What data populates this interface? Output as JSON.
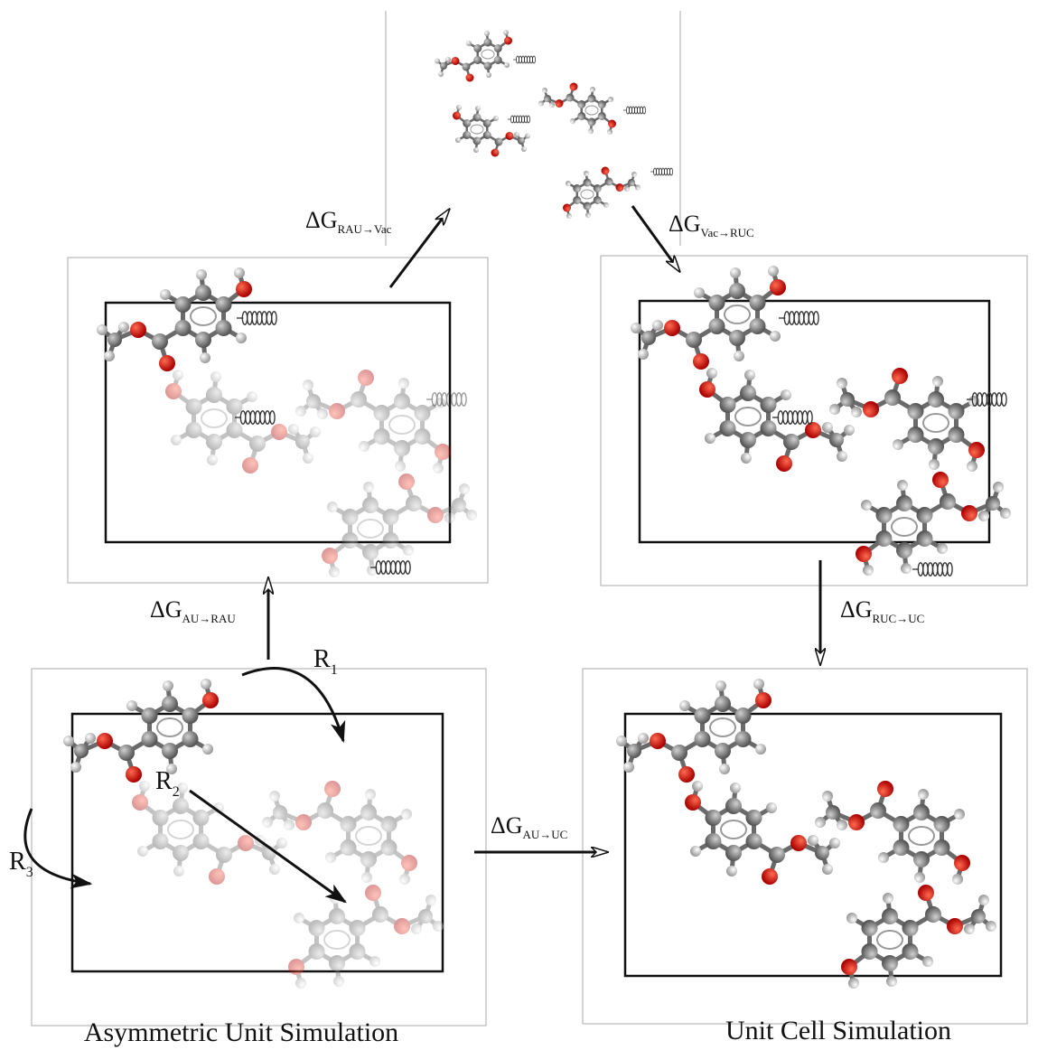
{
  "transitions": [
    {
      "symbol": "ΔG",
      "subscript": "RAU→Vac"
    },
    {
      "symbol": "ΔG",
      "subscript": "Vac→RUC"
    },
    {
      "symbol": "ΔG",
      "subscript": "AU→RAU"
    },
    {
      "symbol": "ΔG",
      "subscript": "RUC→UC"
    },
    {
      "symbol": "ΔG",
      "subscript": "AU→UC"
    }
  ],
  "operations": [
    {
      "symbol": "R",
      "subscript": "1"
    },
    {
      "symbol": "R",
      "subscript": "2"
    },
    {
      "symbol": "R",
      "subscript": "3"
    }
  ],
  "panels": {
    "asymmetric_unit": {
      "caption": "Asymmetric Unit Simulation"
    },
    "unit_cell": {
      "caption": "Unit Cell Simulation"
    }
  }
}
